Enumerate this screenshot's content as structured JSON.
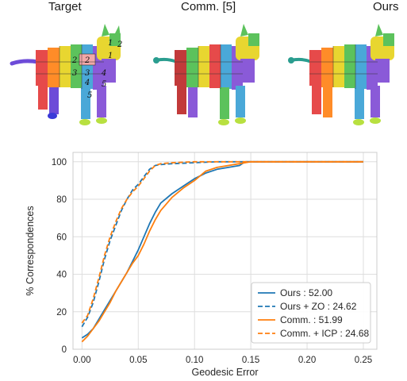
{
  "panels": [
    {
      "title": "Target"
    },
    {
      "title": "Comm. [5]"
    },
    {
      "title": "Ours"
    }
  ],
  "model_labels": [
    "1",
    "2",
    "1",
    "2",
    "2",
    "3",
    "3",
    "4",
    "4",
    "5",
    "5"
  ],
  "chart_data": {
    "type": "line",
    "title": "",
    "xlabel": "Geodesic Error",
    "ylabel": "% Correspondences",
    "xlim": [
      -0.008,
      0.262
    ],
    "ylim": [
      0,
      105
    ],
    "xticks": [
      0.0,
      0.05,
      0.1,
      0.15,
      0.2,
      0.25
    ],
    "xtick_labels": [
      "0.00",
      "0.05",
      "0.10",
      "0.15",
      "0.20",
      "0.25"
    ],
    "yticks": [
      0,
      20,
      40,
      60,
      80,
      100
    ],
    "ytick_labels": [
      "0",
      "20",
      "40",
      "60",
      "80",
      "100"
    ],
    "grid": true,
    "legend_position": "bottom-right",
    "series": [
      {
        "name": "Ours : 52.00",
        "color": "#1f77b4",
        "style": "solid",
        "points": [
          [
            0,
            6
          ],
          [
            0.005,
            8
          ],
          [
            0.01,
            11
          ],
          [
            0.015,
            16
          ],
          [
            0.02,
            21
          ],
          [
            0.025,
            26
          ],
          [
            0.03,
            31
          ],
          [
            0.035,
            36
          ],
          [
            0.04,
            41
          ],
          [
            0.045,
            47
          ],
          [
            0.05,
            53
          ],
          [
            0.055,
            60
          ],
          [
            0.06,
            67
          ],
          [
            0.065,
            73
          ],
          [
            0.07,
            78
          ],
          [
            0.08,
            83
          ],
          [
            0.09,
            87
          ],
          [
            0.1,
            91
          ],
          [
            0.11,
            94
          ],
          [
            0.12,
            96
          ],
          [
            0.13,
            97
          ],
          [
            0.14,
            98
          ],
          [
            0.145,
            100
          ],
          [
            0.25,
            100
          ]
        ]
      },
      {
        "name": "Ours + ZO : 24.62",
        "color": "#1f77b4",
        "style": "dashed",
        "points": [
          [
            0,
            12
          ],
          [
            0.005,
            17
          ],
          [
            0.01,
            25
          ],
          [
            0.015,
            36
          ],
          [
            0.02,
            48
          ],
          [
            0.025,
            58
          ],
          [
            0.03,
            66
          ],
          [
            0.035,
            74
          ],
          [
            0.04,
            80
          ],
          [
            0.045,
            85
          ],
          [
            0.05,
            88
          ],
          [
            0.055,
            92
          ],
          [
            0.06,
            96
          ],
          [
            0.065,
            98
          ],
          [
            0.07,
            98.5
          ],
          [
            0.08,
            99
          ],
          [
            0.1,
            99.5
          ],
          [
            0.12,
            100
          ],
          [
            0.25,
            100
          ]
        ]
      },
      {
        "name": "Comm. : 51.99",
        "color": "#ff7f0e",
        "style": "solid",
        "points": [
          [
            0,
            4
          ],
          [
            0.005,
            7
          ],
          [
            0.01,
            11
          ],
          [
            0.015,
            15
          ],
          [
            0.02,
            20
          ],
          [
            0.025,
            25
          ],
          [
            0.03,
            31
          ],
          [
            0.035,
            36
          ],
          [
            0.04,
            41
          ],
          [
            0.045,
            46
          ],
          [
            0.05,
            50
          ],
          [
            0.055,
            56
          ],
          [
            0.06,
            63
          ],
          [
            0.065,
            69
          ],
          [
            0.07,
            74
          ],
          [
            0.08,
            81
          ],
          [
            0.09,
            86
          ],
          [
            0.1,
            90
          ],
          [
            0.11,
            95
          ],
          [
            0.12,
            97
          ],
          [
            0.13,
            98
          ],
          [
            0.14,
            99
          ],
          [
            0.15,
            100
          ],
          [
            0.25,
            100
          ]
        ]
      },
      {
        "name": "Comm. + ICP : 24.68",
        "color": "#ff7f0e",
        "style": "dashed",
        "points": [
          [
            0,
            14
          ],
          [
            0.005,
            18
          ],
          [
            0.01,
            27
          ],
          [
            0.015,
            38
          ],
          [
            0.02,
            50
          ],
          [
            0.025,
            60
          ],
          [
            0.03,
            68
          ],
          [
            0.035,
            75
          ],
          [
            0.04,
            80
          ],
          [
            0.045,
            84
          ],
          [
            0.05,
            87
          ],
          [
            0.055,
            91
          ],
          [
            0.06,
            95
          ],
          [
            0.065,
            98
          ],
          [
            0.07,
            99
          ],
          [
            0.08,
            99.5
          ],
          [
            0.1,
            100
          ],
          [
            0.25,
            100
          ]
        ]
      }
    ]
  }
}
